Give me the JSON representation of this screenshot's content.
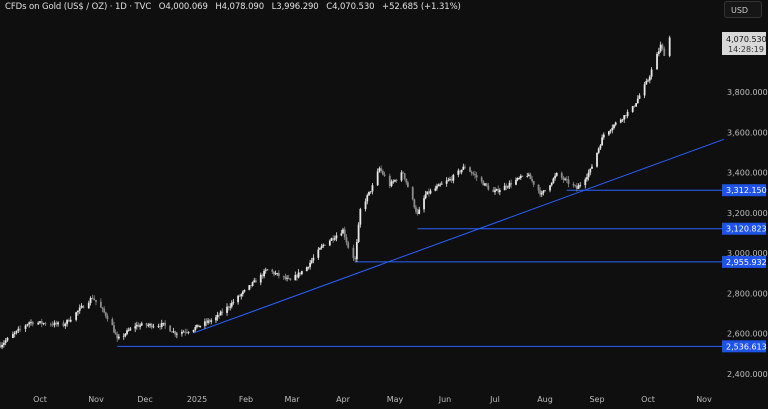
{
  "header": {
    "symbol": "CFDs on Gold (US$ / OZ) · 1D · TVC",
    "open": "O4,000.069",
    "high": "H4,078.090",
    "low": "L3,996.290",
    "close": "C4,070.530",
    "change": "+52.685 (+1.31%)",
    "currency_button": "USD"
  },
  "colors": {
    "background": "#0f0f0f",
    "up": "#e8e8e8",
    "down": "#8c8c8c",
    "level_line": "#2962ff",
    "level_label_bg": "#1e53e5",
    "last_label_bg": "#d9d9d9",
    "change_positive": "#e0e0e0"
  },
  "chart_data": {
    "type": "candlestick",
    "interval": "1D",
    "y_ticks": [
      3800,
      3600,
      3400,
      3200,
      3000,
      2800,
      2600,
      2400
    ],
    "y_tick_labels": [
      "3,800.000",
      "3,600.000",
      "3,400.000",
      "3,200.000",
      "3,000.000",
      "2,800.000",
      "2,600.000",
      "2,400.000"
    ],
    "x_tick_labels": [
      {
        "label": "Oct",
        "date": "2024-10-01"
      },
      {
        "label": "Nov",
        "date": "2024-11-01"
      },
      {
        "label": "Dec",
        "date": "2024-12-01"
      },
      {
        "label": "2025",
        "date": "2025-01-01"
      },
      {
        "label": "Feb",
        "date": "2025-02-01"
      },
      {
        "label": "Mar",
        "date": "2025-03-01"
      },
      {
        "label": "Apr",
        "date": "2025-04-01"
      },
      {
        "label": "May",
        "date": "2025-05-01"
      },
      {
        "label": "Jun",
        "date": "2025-06-01"
      },
      {
        "label": "Jul",
        "date": "2025-07-01"
      },
      {
        "label": "Aug",
        "date": "2025-08-01"
      },
      {
        "label": "Sep",
        "date": "2025-09-01"
      },
      {
        "label": "Oct",
        "date": "2025-10-01"
      },
      {
        "label": "Nov",
        "date": "2025-11-01"
      }
    ],
    "approx_closes": [
      [
        "2024-09-09",
        2543
      ],
      [
        "2024-09-25",
        2657
      ],
      [
        "2024-10-14",
        2643
      ],
      [
        "2024-10-30",
        2780
      ],
      [
        "2024-11-10",
        2660
      ],
      [
        "2024-11-14",
        2568
      ],
      [
        "2024-11-25",
        2640
      ],
      [
        "2024-12-12",
        2643
      ],
      [
        "2024-12-19",
        2603
      ],
      [
        "2024-12-28",
        2618
      ],
      [
        "2025-01-13",
        2677
      ],
      [
        "2025-02-01",
        2816
      ],
      [
        "2025-02-14",
        2916
      ],
      [
        "2025-02-28",
        2860
      ],
      [
        "2025-03-10",
        2930
      ],
      [
        "2025-03-20",
        3040
      ],
      [
        "2025-04-01",
        3114
      ],
      [
        "2025-04-04",
        3030
      ],
      [
        "2025-04-08",
        2965
      ],
      [
        "2025-04-11",
        3214
      ],
      [
        "2025-04-18",
        3330
      ],
      [
        "2025-04-22",
        3420
      ],
      [
        "2025-04-28",
        3338
      ],
      [
        "2025-05-06",
        3400
      ],
      [
        "2025-05-15",
        3189
      ],
      [
        "2025-05-20",
        3290
      ],
      [
        "2025-06-05",
        3370
      ],
      [
        "2025-06-13",
        3430
      ],
      [
        "2025-06-30",
        3300
      ],
      [
        "2025-07-21",
        3390
      ],
      [
        "2025-07-30",
        3290
      ],
      [
        "2025-08-08",
        3390
      ],
      [
        "2025-08-20",
        3320
      ],
      [
        "2025-08-28",
        3410
      ],
      [
        "2025-09-05",
        3590
      ],
      [
        "2025-09-22",
        3720
      ],
      [
        "2025-10-01",
        3860
      ],
      [
        "2025-10-08",
        4030
      ],
      [
        "2025-10-10",
        3990
      ],
      [
        "2025-10-13",
        4070.53
      ]
    ],
    "last_price": "4,070.530",
    "countdown": "14:28:19",
    "horizontal_levels": [
      {
        "value": 3312.15,
        "label": "3,312.150",
        "from": "2025-08-14"
      },
      {
        "value": 3120.823,
        "label": "3,120.823",
        "from": "2025-05-15"
      },
      {
        "value": 2955.932,
        "label": "2,955.932",
        "from": "2025-04-08"
      },
      {
        "value": 2536.613,
        "label": "2,536.613",
        "from": "2024-11-14"
      }
    ],
    "trendline": {
      "from": [
        "2024-12-30",
        2603
      ],
      "to": [
        "2025-11-12",
        3565
      ]
    }
  }
}
